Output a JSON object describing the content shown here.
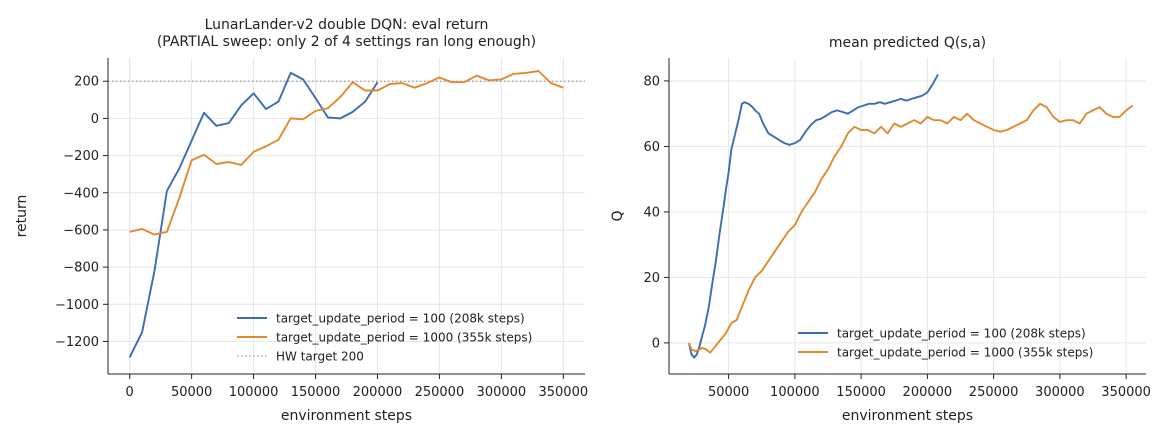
{
  "chart_data": [
    {
      "type": "line",
      "title": "LunarLander-v2 double DQN: eval return\n(PARTIAL sweep: only 2 of 4 settings ran long enough)",
      "xlabel": "environment steps",
      "ylabel": "return",
      "xlim": [
        -17500,
        367500
      ],
      "ylim": [
        -1375,
        325
      ],
      "xticks": [
        0,
        50000,
        100000,
        150000,
        200000,
        250000,
        300000,
        350000
      ],
      "yticks": [
        -1200,
        -1000,
        -800,
        -600,
        -400,
        -200,
        0,
        200
      ],
      "grid": true,
      "legend_position": "lower-right",
      "series": [
        {
          "name": "target_update_period = 100  (208k steps)",
          "color": "#3b6db3",
          "x": [
            0,
            10000,
            20000,
            30000,
            40000,
            50000,
            60000,
            70000,
            80000,
            90000,
            100000,
            110000,
            120000,
            130000,
            140000,
            150000,
            160000,
            170000,
            180000,
            190000,
            200000
          ],
          "y": [
            -1285,
            -1150,
            -820,
            -390,
            -270,
            -120,
            30,
            -40,
            -25,
            70,
            135,
            50,
            90,
            245,
            210,
            110,
            5,
            0,
            35,
            90,
            195
          ]
        },
        {
          "name": "target_update_period = 1000  (355k steps)",
          "color": "#e08a2f",
          "x": [
            0,
            10000,
            20000,
            30000,
            40000,
            50000,
            60000,
            70000,
            80000,
            90000,
            100000,
            110000,
            120000,
            130000,
            140000,
            150000,
            160000,
            170000,
            180000,
            190000,
            200000,
            210000,
            220000,
            230000,
            240000,
            250000,
            260000,
            270000,
            280000,
            290000,
            300000,
            310000,
            320000,
            330000,
            340000,
            350000
          ],
          "y": [
            -610,
            -595,
            -625,
            -610,
            -430,
            -225,
            -195,
            -245,
            -235,
            -250,
            -180,
            -150,
            -115,
            0,
            -5,
            40,
            55,
            115,
            195,
            150,
            150,
            185,
            190,
            165,
            190,
            220,
            195,
            195,
            230,
            205,
            210,
            240,
            245,
            255,
            190,
            165
          ]
        }
      ],
      "reference_lines": [
        {
          "name": "HW target 200",
          "y": 200,
          "color": "#9a9a9a",
          "style": "dotted"
        }
      ]
    },
    {
      "type": "line",
      "title": "mean predicted Q(s,a)",
      "xlabel": "environment steps",
      "ylabel": "Q",
      "xlim": [
        5000,
        365000
      ],
      "ylim": [
        -9.5,
        87
      ],
      "xticks": [
        50000,
        100000,
        150000,
        200000,
        250000,
        300000,
        350000
      ],
      "yticks": [
        0,
        20,
        40,
        60,
        80
      ],
      "grid": true,
      "legend_position": "lower-right",
      "series": [
        {
          "name": "target_update_period = 100  (208k steps)",
          "color": "#3b6db3",
          "x": [
            20000,
            22000,
            24000,
            26000,
            28000,
            30000,
            32000,
            35000,
            38000,
            40000,
            43000,
            46000,
            48000,
            50000,
            52000,
            55000,
            58000,
            60000,
            62000,
            65000,
            68000,
            70000,
            73000,
            76000,
            80000,
            84000,
            88000,
            92000,
            96000,
            100000,
            104000,
            108000,
            112000,
            116000,
            120000,
            124000,
            128000,
            132000,
            136000,
            140000,
            144000,
            148000,
            152000,
            156000,
            160000,
            164000,
            168000,
            172000,
            176000,
            180000,
            184000,
            188000,
            192000,
            196000,
            200000,
            204000,
            208000
          ],
          "y": [
            0,
            -3.5,
            -4.5,
            -3.5,
            -1,
            2,
            5,
            11,
            19,
            24,
            33,
            41,
            47,
            52,
            59,
            64,
            69,
            73,
            73.5,
            73,
            72,
            71,
            70,
            67,
            64,
            63,
            62,
            61,
            60.5,
            61,
            62,
            64.5,
            66.5,
            68,
            68.5,
            69.5,
            70.5,
            71,
            70.5,
            70,
            71,
            72,
            72.5,
            73,
            73,
            73.5,
            73,
            73.5,
            74,
            74.5,
            74,
            74.5,
            75,
            75.5,
            76.5,
            79,
            82
          ]
        },
        {
          "name": "target_update_period = 1000  (355k steps)",
          "color": "#e08a2f",
          "x": [
            20000,
            22000,
            25000,
            28000,
            30000,
            33000,
            36000,
            40000,
            44000,
            48000,
            52000,
            56000,
            60000,
            65000,
            70000,
            75000,
            80000,
            85000,
            90000,
            95000,
            100000,
            105000,
            110000,
            115000,
            120000,
            125000,
            130000,
            135000,
            140000,
            145000,
            150000,
            155000,
            160000,
            165000,
            170000,
            175000,
            180000,
            185000,
            190000,
            195000,
            200000,
            205000,
            210000,
            215000,
            220000,
            225000,
            230000,
            235000,
            240000,
            245000,
            250000,
            255000,
            260000,
            265000,
            270000,
            275000,
            280000,
            285000,
            290000,
            295000,
            300000,
            305000,
            310000,
            315000,
            320000,
            325000,
            330000,
            335000,
            340000,
            345000,
            350000,
            355000
          ],
          "y": [
            0,
            -2,
            -2.5,
            -2,
            -1.5,
            -2,
            -3,
            -1,
            1,
            3,
            6,
            7,
            11,
            16,
            20,
            22,
            25,
            28,
            31,
            34,
            36,
            40,
            43,
            46,
            50,
            53,
            57,
            60,
            64,
            66,
            65,
            65,
            64,
            66,
            64,
            67,
            66,
            67,
            68,
            67,
            69,
            68,
            68,
            67,
            69,
            68,
            70,
            68,
            67,
            66,
            65,
            64.5,
            65,
            66,
            67,
            68,
            71,
            73,
            72,
            69,
            67.5,
            68,
            68,
            67,
            70,
            71,
            72,
            70,
            69,
            69,
            71,
            72.5
          ]
        }
      ]
    }
  ]
}
